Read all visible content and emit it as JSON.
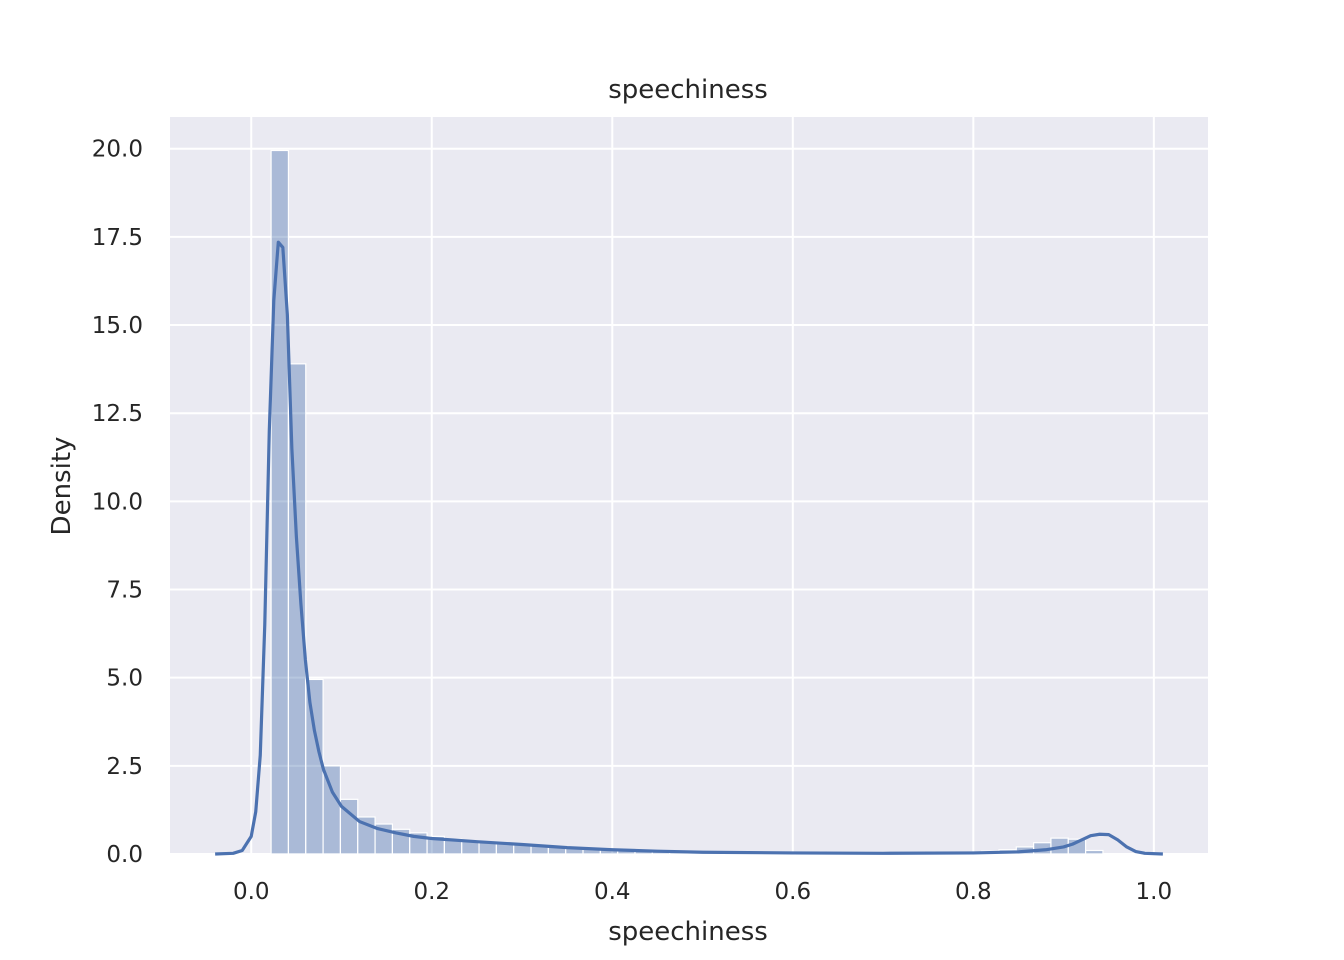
{
  "chart_data": {
    "type": "histogram_kde",
    "title": "speechiness",
    "xlabel": "speechiness",
    "ylabel": "Density",
    "xlim": [
      -0.09,
      1.06
    ],
    "ylim": [
      0,
      20.9
    ],
    "xticks": [
      0.0,
      0.2,
      0.4,
      0.6,
      0.8,
      1.0
    ],
    "xtick_labels": [
      "0.0",
      "0.2",
      "0.4",
      "0.6",
      "0.8",
      "1.0"
    ],
    "yticks": [
      0.0,
      2.5,
      5.0,
      7.5,
      10.0,
      12.5,
      15.0,
      17.5,
      20.0
    ],
    "ytick_labels": [
      "0.0",
      "2.5",
      "5.0",
      "7.5",
      "10.0",
      "12.5",
      "15.0",
      "17.5",
      "20.0"
    ],
    "grid": true,
    "background": "#eaeaf2",
    "bar_color": "#4c72b0",
    "line_color": "#4c72b0",
    "bins": {
      "start": 0.022,
      "width": 0.0192,
      "densities": [
        19.95,
        13.9,
        4.95,
        2.5,
        1.55,
        1.05,
        0.85,
        0.7,
        0.6,
        0.5,
        0.42,
        0.38,
        0.33,
        0.3,
        0.27,
        0.24,
        0.2,
        0.17,
        0.14,
        0.12,
        0.1,
        0.09,
        0.08,
        0.07,
        0.06,
        0.05,
        0.05,
        0.04,
        0.04,
        0.03,
        0.03,
        0.03,
        0.03,
        0.03,
        0.03,
        0.03,
        0.03,
        0.03,
        0.03,
        0.04,
        0.05,
        0.08,
        0.12,
        0.2,
        0.32,
        0.45,
        0.42,
        0.1
      ]
    },
    "kde": {
      "x": [
        -0.04,
        -0.02,
        -0.01,
        0.0,
        0.005,
        0.01,
        0.015,
        0.02,
        0.025,
        0.03,
        0.035,
        0.04,
        0.045,
        0.05,
        0.055,
        0.06,
        0.065,
        0.07,
        0.075,
        0.08,
        0.09,
        0.1,
        0.12,
        0.14,
        0.16,
        0.18,
        0.2,
        0.25,
        0.3,
        0.35,
        0.4,
        0.45,
        0.5,
        0.6,
        0.7,
        0.8,
        0.85,
        0.88,
        0.9,
        0.91,
        0.92,
        0.93,
        0.94,
        0.95,
        0.96,
        0.97,
        0.98,
        0.99,
        1.01
      ],
      "y": [
        0.0,
        0.02,
        0.1,
        0.5,
        1.2,
        2.8,
        6.5,
        12.0,
        15.7,
        17.35,
        17.2,
        15.3,
        11.5,
        9.0,
        7.1,
        5.5,
        4.3,
        3.5,
        2.9,
        2.4,
        1.75,
        1.35,
        0.92,
        0.72,
        0.6,
        0.5,
        0.44,
        0.35,
        0.27,
        0.18,
        0.12,
        0.08,
        0.05,
        0.03,
        0.02,
        0.03,
        0.06,
        0.12,
        0.2,
        0.28,
        0.4,
        0.52,
        0.56,
        0.55,
        0.4,
        0.2,
        0.07,
        0.02,
        0.0
      ]
    }
  }
}
